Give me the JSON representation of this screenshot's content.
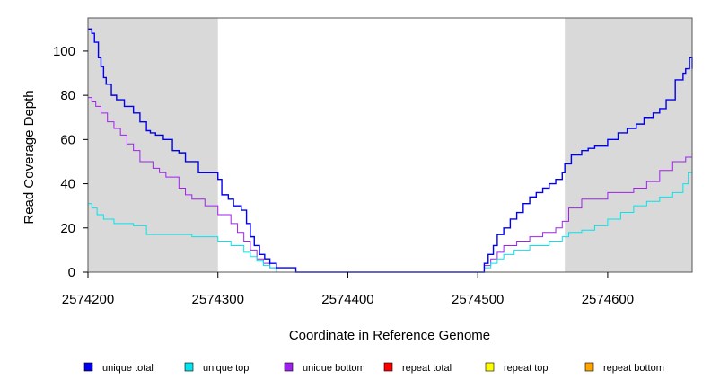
{
  "chart_data": {
    "type": "line",
    "xlabel": "Coordinate in Reference Genome",
    "ylabel": "Read Coverage Depth",
    "xlim": [
      2574200,
      2574665
    ],
    "ylim": [
      0,
      115
    ],
    "x_ticks": [
      2574200,
      2574300,
      2574400,
      2574500,
      2574600
    ],
    "x_tick_labels": [
      "2574200",
      "2574300",
      "2574400",
      "2574500",
      "2574600"
    ],
    "y_ticks": [
      0,
      20,
      40,
      60,
      80,
      100
    ],
    "y_tick_labels": [
      "0",
      "20",
      "40",
      "60",
      "80",
      "100"
    ],
    "shaded_regions": [
      [
        2574200,
        2574300
      ],
      [
        2574567,
        2574665
      ]
    ],
    "shade_color": "#d9d9d9",
    "grid": false,
    "legend_position": "bottom",
    "step": true,
    "series": [
      {
        "name": "unique total",
        "color": "#0000ee",
        "x": [
          2574200,
          2574203,
          2574205,
          2574208,
          2574210,
          2574212,
          2574214,
          2574218,
          2574222,
          2574228,
          2574235,
          2574240,
          2574245,
          2574248,
          2574252,
          2574258,
          2574265,
          2574270,
          2574275,
          2574285,
          2574300,
          2574303,
          2574308,
          2574312,
          2574318,
          2574322,
          2574325,
          2574328,
          2574332,
          2574336,
          2574340,
          2574345,
          2574360,
          2574500,
          2574505,
          2574508,
          2574512,
          2574515,
          2574520,
          2574525,
          2574530,
          2574535,
          2574540,
          2574545,
          2574550,
          2574555,
          2574560,
          2574565,
          2574567,
          2574572,
          2574580,
          2574585,
          2574590,
          2574600,
          2574608,
          2574615,
          2574622,
          2574628,
          2574635,
          2574640,
          2574645,
          2574652,
          2574658,
          2574660,
          2574663,
          2574665
        ],
        "values": [
          110,
          108,
          104,
          97,
          93,
          88,
          85,
          80,
          78,
          75,
          72,
          68,
          64,
          63,
          62,
          60,
          55,
          54,
          50,
          45,
          42,
          35,
          33,
          30,
          28,
          22,
          16,
          12,
          8,
          6,
          4,
          2,
          0,
          0,
          4,
          8,
          12,
          17,
          20,
          24,
          27,
          31,
          34,
          36,
          38,
          40,
          42,
          45,
          49,
          53,
          55,
          56,
          57,
          60,
          63,
          65,
          67,
          70,
          72,
          74,
          78,
          87,
          90,
          92,
          97,
          92
        ]
      },
      {
        "name": "unique top",
        "color": "#00e5ee",
        "x": [
          2574200,
          2574203,
          2574207,
          2574212,
          2574220,
          2574235,
          2574245,
          2574280,
          2574300,
          2574310,
          2574320,
          2574325,
          2574330,
          2574335,
          2574340,
          2574345,
          2574500,
          2574505,
          2574510,
          2574515,
          2574520,
          2574528,
          2574540,
          2574555,
          2574565,
          2574570,
          2574580,
          2574590,
          2574600,
          2574610,
          2574620,
          2574630,
          2574640,
          2574650,
          2574658,
          2574662,
          2574665
        ],
        "values": [
          31,
          29,
          26,
          24,
          22,
          21,
          17,
          16,
          14,
          12,
          9,
          7,
          5,
          3,
          2,
          0,
          0,
          2,
          4,
          6,
          8,
          10,
          12,
          14,
          16,
          18,
          19,
          21,
          24,
          27,
          30,
          32,
          34,
          36,
          40,
          45,
          42
        ]
      },
      {
        "name": "unique bottom",
        "color": "#a020f0",
        "x": [
          2574200,
          2574203,
          2574206,
          2574210,
          2574215,
          2574220,
          2574225,
          2574230,
          2574235,
          2574240,
          2574250,
          2574255,
          2574260,
          2574270,
          2574275,
          2574280,
          2574290,
          2574300,
          2574310,
          2574315,
          2574320,
          2574325,
          2574330,
          2574335,
          2574340,
          2574345,
          2574500,
          2574505,
          2574510,
          2574515,
          2574520,
          2574530,
          2574540,
          2574550,
          2574560,
          2574565,
          2574570,
          2574580,
          2574600,
          2574620,
          2574630,
          2574640,
          2574650,
          2574660,
          2574665
        ],
        "values": [
          79,
          77,
          75,
          72,
          68,
          65,
          62,
          58,
          55,
          50,
          47,
          45,
          43,
          38,
          35,
          33,
          30,
          26,
          22,
          18,
          14,
          10,
          6,
          4,
          2,
          0,
          0,
          3,
          6,
          9,
          12,
          14,
          16,
          18,
          20,
          23,
          29,
          33,
          36,
          38,
          41,
          46,
          50,
          52,
          49
        ]
      },
      {
        "name": "repeat total",
        "color": "#ff0000",
        "x": [
          2574200,
          2574665
        ],
        "values": [
          0,
          0
        ]
      },
      {
        "name": "repeat top",
        "color": "#ffff00",
        "x": [
          2574200,
          2574665
        ],
        "values": [
          0,
          0
        ]
      },
      {
        "name": "repeat bottom",
        "color": "#ffa500",
        "x": [
          2574200,
          2574665
        ],
        "values": [
          0,
          0
        ]
      }
    ]
  }
}
